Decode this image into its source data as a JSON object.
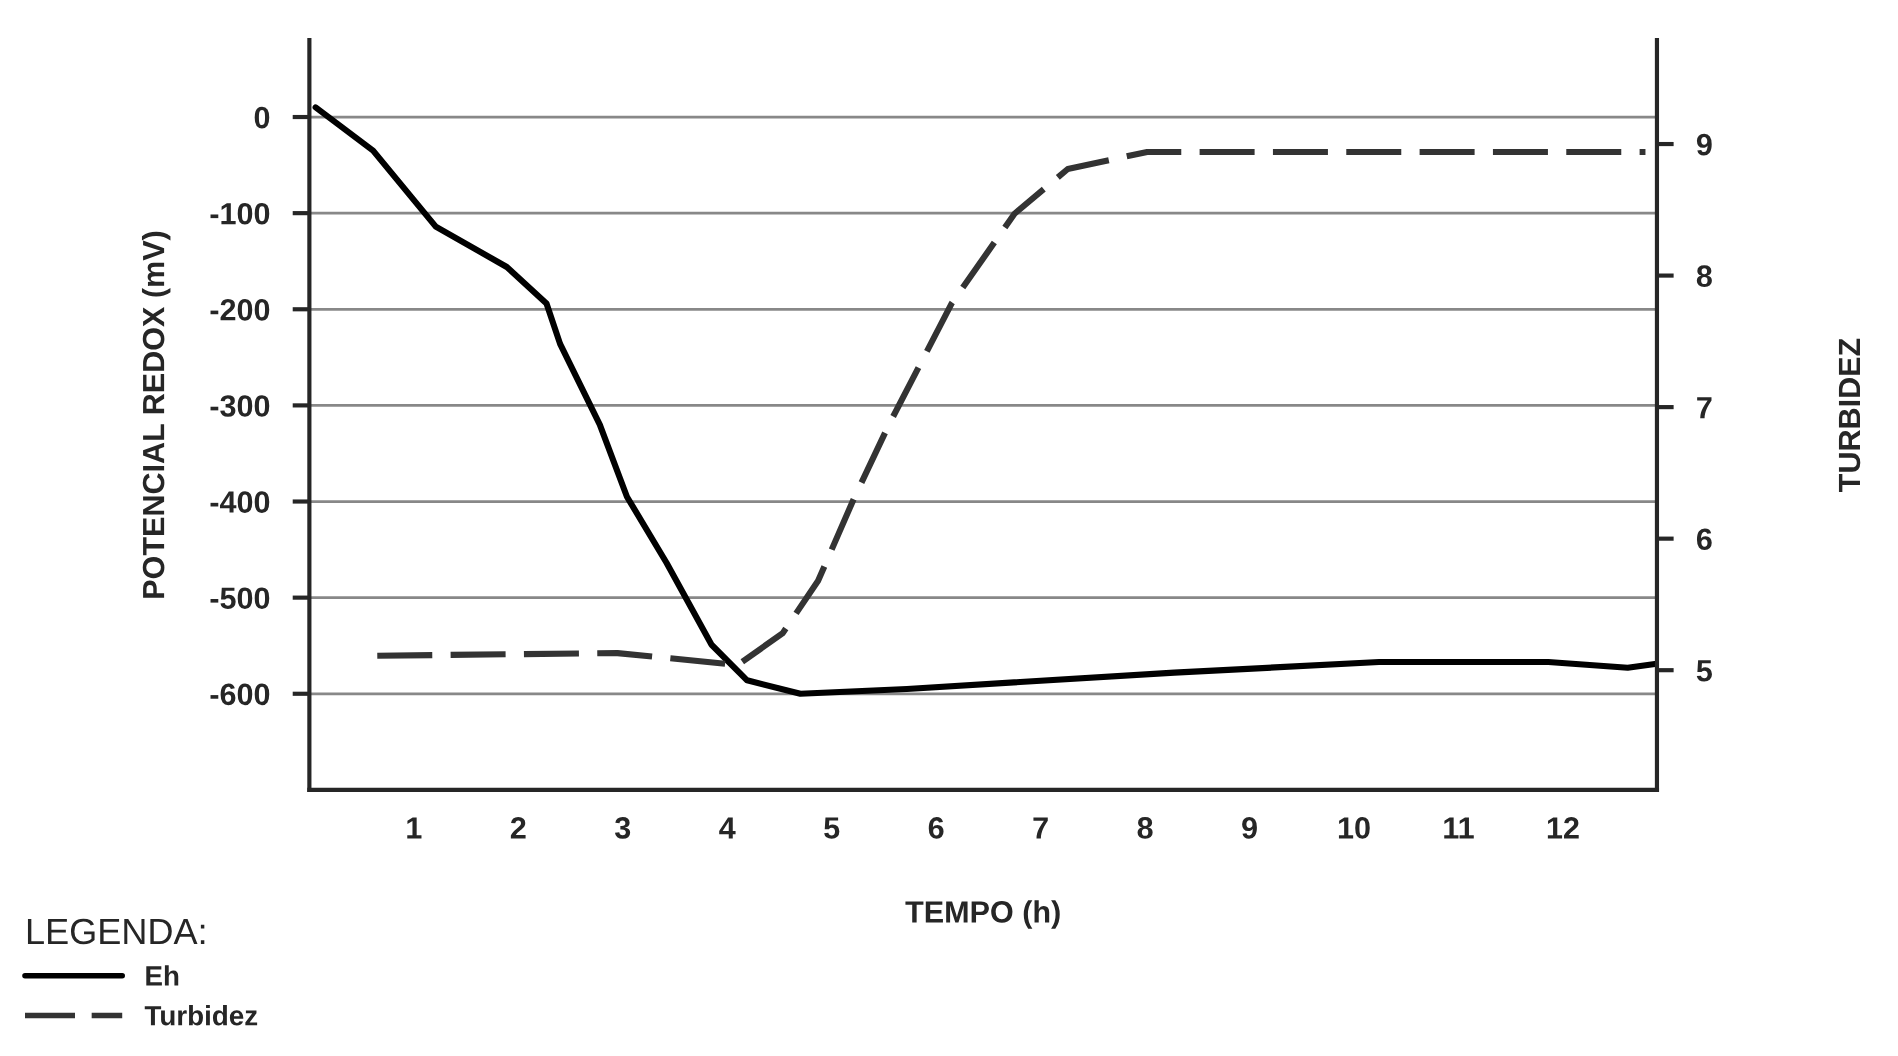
{
  "chart_data": {
    "type": "line",
    "xlabel": "TEMPO (h)",
    "ylabel": "POTENCIAL REDOX (mV)",
    "y2label": "TURBIDEZ",
    "legend_title": "LEGENDA:",
    "xlim": [
      0,
      12.9
    ],
    "xticks": [
      1,
      2,
      3,
      4,
      5,
      6,
      7,
      8,
      9,
      10,
      11,
      12
    ],
    "ylim": [
      -700,
      80
    ],
    "yticks": [
      0,
      -100,
      -200,
      -300,
      -400,
      -500,
      -600
    ],
    "y2lim": [
      4.09,
      9.79
    ],
    "y2ticks": [
      5,
      6,
      7,
      8,
      9
    ],
    "grid": "y",
    "legend": "bottom left",
    "series": [
      {
        "name": "Eh",
        "color": "#000000",
        "line_style": "solid",
        "x": [
          0.06,
          0.61,
          1.21,
          1.89,
          2.27,
          2.4,
          2.78,
          3.04,
          3.42,
          3.85,
          4.19,
          4.7,
          5.72,
          8.28,
          10.24,
          11.86,
          12.62,
          12.88
        ],
        "values": [
          10,
          -35,
          -114,
          -156,
          -194,
          -236,
          -320,
          -395,
          -464,
          -549,
          -586,
          -600,
          -595,
          -578,
          -567,
          -567,
          -573,
          -569
        ]
      },
      {
        "name": "Turbidez",
        "color": "#333333",
        "line_style": "dashed",
        "axis": "y2",
        "x": [
          0.65,
          2.95,
          4.1,
          4.53,
          4.87,
          5.21,
          5.55,
          6.15,
          6.75,
          7.26,
          8.02,
          12.79
        ],
        "values": [
          5.11,
          5.13,
          5.04,
          5.28,
          5.68,
          6.3,
          6.87,
          7.79,
          8.47,
          8.81,
          8.94,
          8.94
        ]
      }
    ]
  }
}
